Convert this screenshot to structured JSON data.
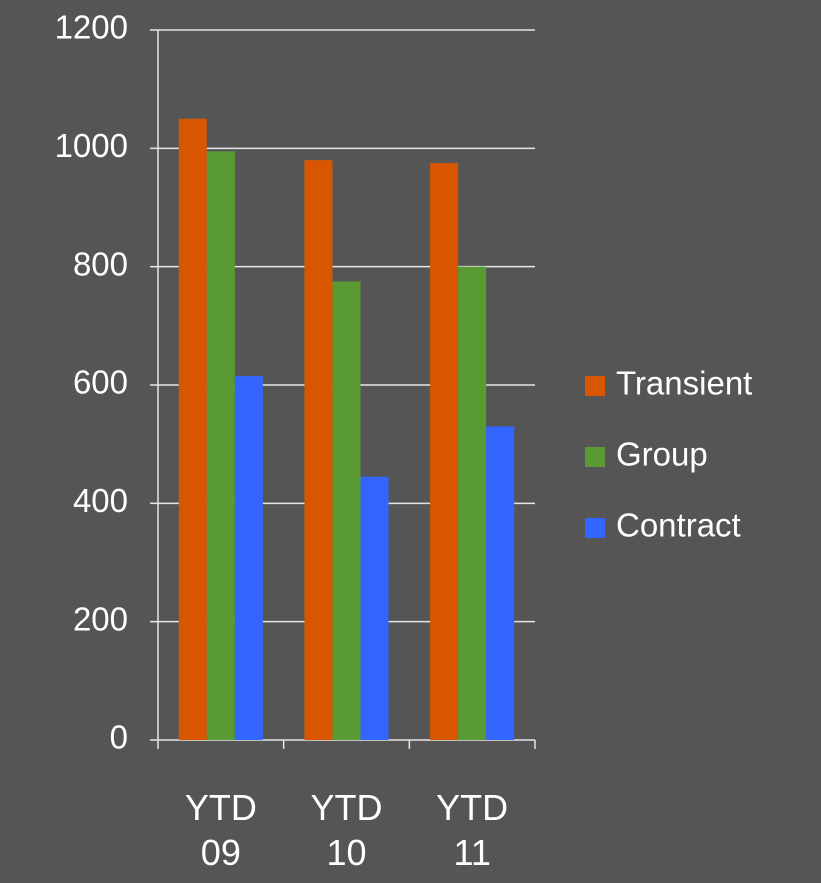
{
  "chart_data": {
    "type": "bar",
    "categories": [
      "YTD 09",
      "YTD 10",
      "YTD 11"
    ],
    "series": [
      {
        "name": "Transient",
        "color": "#d95600",
        "values": [
          1050,
          980,
          975
        ]
      },
      {
        "name": "Group",
        "color": "#5a9a32",
        "values": [
          995,
          775,
          800
        ]
      },
      {
        "name": "Contract",
        "color": "#3366ff",
        "values": [
          615,
          445,
          530
        ]
      }
    ],
    "ylim": [
      0,
      1200
    ],
    "yticks": [
      0,
      200,
      400,
      600,
      800,
      1000,
      1200
    ],
    "grid": true,
    "legend": "right"
  }
}
